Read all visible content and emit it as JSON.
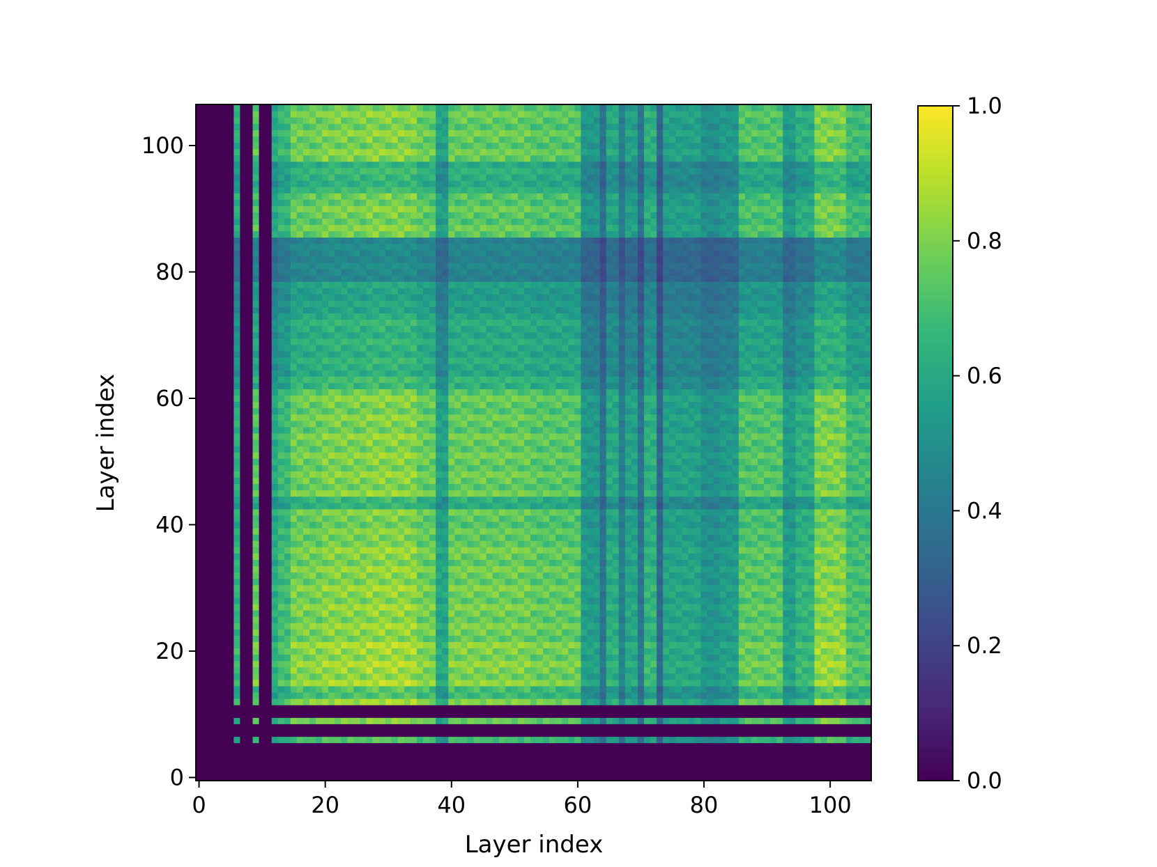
{
  "chart_data": {
    "type": "heatmap",
    "title": "",
    "xlabel": "Layer index",
    "ylabel": "Layer index",
    "n": 107,
    "xlim": [
      -0.5,
      106.5
    ],
    "ylim": [
      -0.5,
      106.5
    ],
    "x_ticks": [
      0,
      20,
      40,
      60,
      80,
      100
    ],
    "x_tick_labels": [
      "0",
      "20",
      "40",
      "60",
      "80",
      "100"
    ],
    "y_ticks": [
      0,
      20,
      40,
      60,
      80,
      100
    ],
    "y_tick_labels": [
      "0",
      "20",
      "40",
      "60",
      "80",
      "100"
    ],
    "colormap": "viridis",
    "colorbar": {
      "range": [
        0.0,
        1.0
      ],
      "ticks": [
        0.0,
        0.2,
        0.4,
        0.6,
        0.8,
        1.0
      ],
      "tick_labels": [
        "0.0",
        "0.2",
        "0.4",
        "0.6",
        "0.8",
        "1.0"
      ]
    },
    "grid": false,
    "column_profile": [
      {
        "start": 0,
        "end": 5,
        "value": 0.0
      },
      {
        "start": 6,
        "end": 6,
        "value": 0.55
      },
      {
        "start": 7,
        "end": 8,
        "value": 0.0
      },
      {
        "start": 9,
        "end": 9,
        "value": 0.75
      },
      {
        "start": 10,
        "end": 11,
        "value": 0.0
      },
      {
        "start": 12,
        "end": 12,
        "value": 0.5
      },
      {
        "start": 13,
        "end": 14,
        "value": 0.62
      },
      {
        "start": 15,
        "end": 19,
        "value": 0.82
      },
      {
        "start": 20,
        "end": 26,
        "value": 0.88
      },
      {
        "start": 27,
        "end": 34,
        "value": 0.92
      },
      {
        "start": 35,
        "end": 37,
        "value": 0.8
      },
      {
        "start": 38,
        "end": 39,
        "value": 0.45
      },
      {
        "start": 40,
        "end": 52,
        "value": 0.8
      },
      {
        "start": 53,
        "end": 60,
        "value": 0.75
      },
      {
        "start": 61,
        "end": 63,
        "value": 0.4
      },
      {
        "start": 64,
        "end": 64,
        "value": 0.2
      },
      {
        "start": 65,
        "end": 66,
        "value": 0.5
      },
      {
        "start": 67,
        "end": 67,
        "value": 0.25
      },
      {
        "start": 68,
        "end": 69,
        "value": 0.45
      },
      {
        "start": 70,
        "end": 70,
        "value": 0.2
      },
      {
        "start": 71,
        "end": 72,
        "value": 0.55
      },
      {
        "start": 73,
        "end": 73,
        "value": 0.15
      },
      {
        "start": 74,
        "end": 79,
        "value": 0.45
      },
      {
        "start": 80,
        "end": 82,
        "value": 0.35
      },
      {
        "start": 83,
        "end": 85,
        "value": 0.4
      },
      {
        "start": 86,
        "end": 92,
        "value": 0.72
      },
      {
        "start": 93,
        "end": 94,
        "value": 0.42
      },
      {
        "start": 95,
        "end": 97,
        "value": 0.55
      },
      {
        "start": 98,
        "end": 102,
        "value": 0.88
      },
      {
        "start": 103,
        "end": 106,
        "value": 0.65
      }
    ],
    "row_profile": [
      {
        "start": 0,
        "end": 5,
        "value": 0.0
      },
      {
        "start": 6,
        "end": 6,
        "value": 0.65
      },
      {
        "start": 7,
        "end": 8,
        "value": 0.0
      },
      {
        "start": 9,
        "end": 9,
        "value": 0.8
      },
      {
        "start": 10,
        "end": 11,
        "value": 0.0
      },
      {
        "start": 12,
        "end": 12,
        "value": 0.9
      },
      {
        "start": 13,
        "end": 14,
        "value": 0.72
      },
      {
        "start": 15,
        "end": 21,
        "value": 0.96
      },
      {
        "start": 22,
        "end": 31,
        "value": 0.9
      },
      {
        "start": 32,
        "end": 37,
        "value": 0.88
      },
      {
        "start": 38,
        "end": 42,
        "value": 0.82
      },
      {
        "start": 43,
        "end": 44,
        "value": 0.6
      },
      {
        "start": 45,
        "end": 54,
        "value": 0.86
      },
      {
        "start": 55,
        "end": 61,
        "value": 0.84
      },
      {
        "start": 62,
        "end": 63,
        "value": 0.6
      },
      {
        "start": 64,
        "end": 73,
        "value": 0.55
      },
      {
        "start": 74,
        "end": 78,
        "value": 0.45
      },
      {
        "start": 79,
        "end": 85,
        "value": 0.3
      },
      {
        "start": 86,
        "end": 92,
        "value": 0.82
      },
      {
        "start": 93,
        "end": 97,
        "value": 0.58
      },
      {
        "start": 98,
        "end": 106,
        "value": 0.85
      }
    ],
    "dark_rows": [
      0,
      1,
      2,
      3,
      4,
      5,
      7,
      8,
      10,
      11
    ],
    "dark_cols": [
      0,
      1,
      2,
      3,
      4,
      5,
      7,
      8,
      10,
      11
    ],
    "row_modulation": [
      0.97,
      0.86,
      0.99,
      0.9,
      0.95,
      0.84,
      1.0,
      0.91,
      0.88,
      0.96,
      0.82,
      0.93
    ]
  },
  "colors": {
    "viridis_stops": [
      "#440154",
      "#482878",
      "#3e4989",
      "#31688e",
      "#26828e",
      "#1f9e89",
      "#35b779",
      "#6ece58",
      "#b5de2b",
      "#fde725"
    ]
  }
}
